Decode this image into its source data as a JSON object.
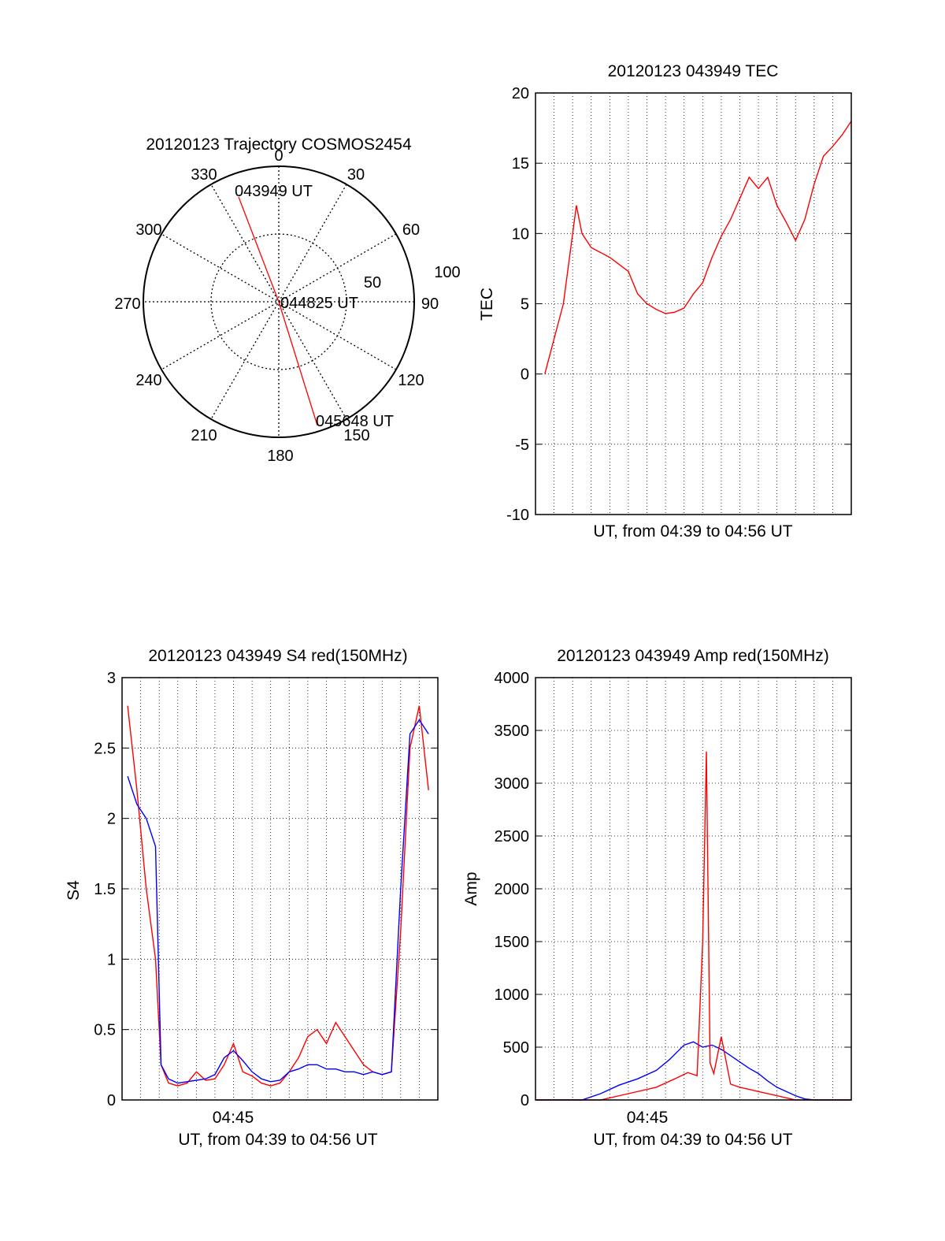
{
  "colors": {
    "red": "#ff0000",
    "blue": "#0000ff",
    "axis": "#000000",
    "grid": "#000000"
  },
  "polar": {
    "title": "20120123 Trajectory COSMOS2454",
    "azimuth_labels": [
      "0",
      "30",
      "60",
      "90",
      "120",
      "150",
      "180",
      "210",
      "240",
      "270",
      "300",
      "330"
    ],
    "radius_labels": [
      "50",
      "100"
    ],
    "start_label": "043949 UT",
    "mid_label": "044825 UT",
    "end_label": "045648 UT"
  },
  "chart_data": [
    {
      "type": "polar-line",
      "title": "20120123 Trajectory COSMOS2454",
      "r_range": [
        0,
        100
      ],
      "grid": true,
      "series": [
        {
          "color": "#ff0000",
          "points": [
            [
              334,
              86
            ],
            [
              0,
              0
            ],
            [
              158,
              86
            ]
          ]
        }
      ],
      "annotations": [
        "043949 UT",
        "044825 UT",
        "045648 UT"
      ]
    },
    {
      "type": "line",
      "title": "20120123 043949 TEC",
      "xlabel": "UT, from 04:39 to 04:56 UT",
      "ylabel": "TEC",
      "xlim": [
        0,
        17
      ],
      "ylim": [
        -10,
        20
      ],
      "yticks": [
        "-10",
        "-5",
        "0",
        "5",
        "10",
        "15",
        "20"
      ],
      "grid": true,
      "series": [
        {
          "color": "#ff0000",
          "x": [
            0.5,
            1.0,
            1.5,
            2.0,
            2.2,
            2.5,
            3.0,
            4.0,
            5.0,
            5.5,
            6.0,
            6.5,
            7.0,
            7.5,
            8.0,
            8.5,
            9.0,
            9.5,
            10.0,
            10.5,
            11.0,
            11.5,
            12.0,
            12.5,
            13.0,
            13.5,
            14.0,
            14.5,
            15.0,
            15.5,
            16.0,
            16.5,
            17.0
          ],
          "y": [
            0,
            2.5,
            5,
            10,
            12,
            10,
            9,
            8.3,
            7.3,
            5.7,
            5.0,
            4.6,
            4.3,
            4.4,
            4.7,
            5.7,
            6.5,
            8.3,
            9.8,
            11.0,
            12.5,
            14.0,
            13.2,
            14.0,
            12.0,
            10.8,
            9.5,
            11.0,
            13.5,
            15.5,
            16.2,
            17.0,
            18.0
          ]
        }
      ]
    },
    {
      "type": "line",
      "title": "20120123 043949 S4 red(150MHz)",
      "xlabel": "UT, from 04:39 to 04:56 UT",
      "ylabel": "S4",
      "xtick_label": "04:45",
      "xlim": [
        0,
        17
      ],
      "ylim": [
        0,
        3
      ],
      "yticks": [
        "0",
        "0.5",
        "1",
        "1.5",
        "2",
        "2.5",
        "3"
      ],
      "grid": true,
      "series": [
        {
          "color": "#ff0000",
          "x": [
            0.3,
            0.8,
            1.3,
            1.8,
            2.1,
            2.5,
            3.0,
            3.5,
            4.0,
            4.5,
            5.0,
            5.5,
            6.0,
            6.5,
            7.0,
            7.5,
            8.0,
            8.5,
            9.0,
            9.5,
            10.0,
            10.5,
            11.0,
            11.5,
            12.0,
            12.5,
            13.0,
            13.5,
            14.0,
            14.5,
            15.0,
            15.5,
            16.0,
            16.5
          ],
          "y": [
            2.8,
            2.2,
            1.5,
            1.0,
            0.25,
            0.12,
            0.1,
            0.12,
            0.2,
            0.14,
            0.15,
            0.25,
            0.4,
            0.2,
            0.17,
            0.12,
            0.1,
            0.12,
            0.2,
            0.3,
            0.45,
            0.5,
            0.4,
            0.55,
            0.45,
            0.35,
            0.25,
            0.2,
            0.18,
            0.2,
            1.2,
            2.5,
            2.8,
            2.2
          ]
        },
        {
          "color": "#0000ff",
          "x": [
            0.3,
            0.8,
            1.3,
            1.8,
            2.1,
            2.5,
            3.0,
            3.5,
            4.0,
            4.5,
            5.0,
            5.5,
            6.0,
            6.5,
            7.0,
            7.5,
            8.0,
            8.5,
            9.0,
            9.5,
            10.0,
            10.5,
            11.0,
            11.5,
            12.0,
            12.5,
            13.0,
            13.5,
            14.0,
            14.5,
            15.0,
            15.5,
            16.0,
            16.5
          ],
          "y": [
            2.3,
            2.1,
            2.0,
            1.8,
            0.25,
            0.15,
            0.12,
            0.13,
            0.14,
            0.15,
            0.18,
            0.3,
            0.35,
            0.28,
            0.2,
            0.15,
            0.13,
            0.14,
            0.2,
            0.22,
            0.25,
            0.25,
            0.22,
            0.22,
            0.2,
            0.2,
            0.18,
            0.2,
            0.18,
            0.2,
            1.5,
            2.6,
            2.7,
            2.6
          ]
        }
      ]
    },
    {
      "type": "line",
      "title": "20120123 043949 Amp red(150MHz)",
      "xlabel": "UT, from 04:39 to 04:56 UT",
      "ylabel": "Amp",
      "xtick_label": "04:45",
      "xlim": [
        0,
        17
      ],
      "ylim": [
        0,
        4000
      ],
      "yticks": [
        "0",
        "500",
        "1000",
        "1500",
        "2000",
        "2500",
        "3000",
        "3500",
        "4000"
      ],
      "grid": true,
      "series": [
        {
          "color": "#0000ff",
          "x": [
            0,
            2.5,
            3.5,
            4.5,
            5.5,
            6.5,
            7.2,
            8.0,
            8.5,
            9.0,
            9.5,
            10.0,
            10.5,
            11.0,
            11.5,
            12.0,
            12.5,
            13.0,
            13.5,
            14.0,
            14.5,
            15.0,
            17.0
          ],
          "y": [
            0,
            0,
            60,
            140,
            200,
            280,
            380,
            520,
            550,
            500,
            520,
            480,
            420,
            360,
            300,
            250,
            180,
            120,
            80,
            40,
            10,
            0,
            0
          ]
        },
        {
          "color": "#ff0000",
          "x": [
            0,
            3.5,
            5.0,
            6.5,
            7.5,
            8.2,
            8.7,
            9.0,
            9.2,
            9.4,
            9.6,
            10.0,
            10.5,
            11.0,
            11.5,
            12.0,
            13.0,
            14.0,
            17.0
          ],
          "y": [
            0,
            0,
            60,
            120,
            200,
            260,
            230,
            1500,
            3300,
            350,
            250,
            600,
            150,
            120,
            100,
            80,
            40,
            0,
            0
          ]
        }
      ]
    }
  ]
}
